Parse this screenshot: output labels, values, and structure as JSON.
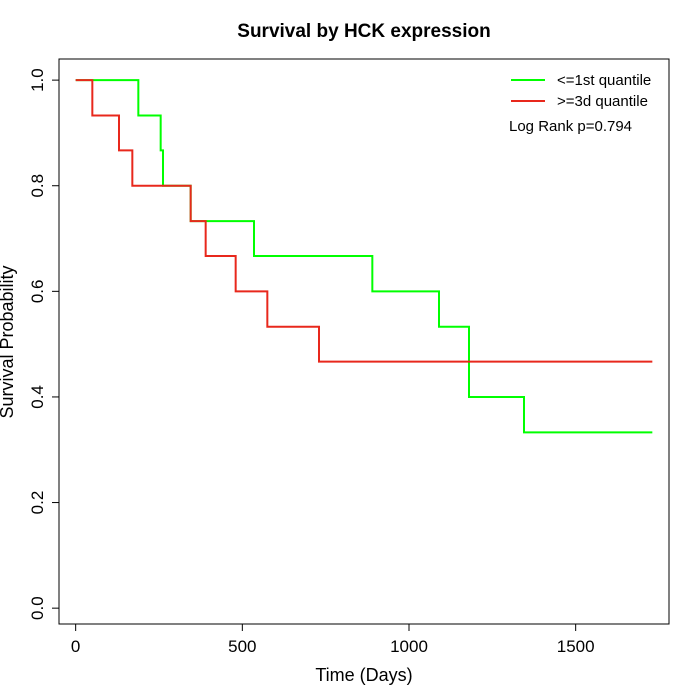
{
  "chart_data": {
    "type": "line",
    "title": "Survival by HCK expression",
    "xlabel": "Time (Days)",
    "ylabel": "Survival Probability",
    "xlim": [
      -50,
      1780
    ],
    "ylim": [
      -0.03,
      1.04
    ],
    "xticks": [
      0,
      500,
      1000,
      1500
    ],
    "yticks": [
      0.0,
      0.2,
      0.4,
      0.6,
      0.8,
      1.0
    ],
    "xtick_labels": [
      "0",
      "500",
      "1000",
      "1500"
    ],
    "ytick_labels": [
      "0.0",
      "0.2",
      "0.4",
      "0.6",
      "0.8",
      "1.0"
    ],
    "step": true,
    "grid": false,
    "legend_position": "top-right",
    "annotation": "Log Rank p=0.794",
    "series": [
      {
        "name": "<=1st quantile",
        "color": "#00ff00",
        "x": [
          0,
          188,
          255,
          262,
          345,
          535,
          890,
          1090,
          1180,
          1345,
          1730
        ],
        "y": [
          1.0,
          0.933,
          0.867,
          0.8,
          0.733,
          0.667,
          0.6,
          0.533,
          0.4,
          0.333,
          0.333
        ]
      },
      {
        "name": ">=3d quantile",
        "color": "#e8281c",
        "x": [
          0,
          50,
          130,
          170,
          345,
          390,
          480,
          575,
          730,
          1730
        ],
        "y": [
          1.0,
          0.933,
          0.867,
          0.8,
          0.733,
          0.667,
          0.6,
          0.533,
          0.467,
          0.467
        ]
      }
    ]
  }
}
